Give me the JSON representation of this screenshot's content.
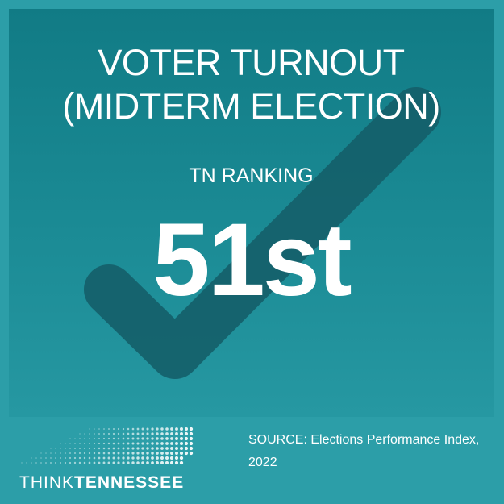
{
  "graphic": {
    "title_line1": "VOTER TURNOUT",
    "title_line2": "(MIDTERM ELECTION)",
    "subtitle": "TN RANKING",
    "ranking": "51st",
    "source_line1": "SOURCE: Elections Performance Index,",
    "source_line2": "2022",
    "background_icon": "checkmark-icon"
  },
  "brand": {
    "logo_icon": "tennessee-map-dots-icon",
    "name_part1": "THINK",
    "name_part2": "TENNESSEE"
  },
  "colors": {
    "outer_background": "#2c9ea8",
    "panel_top": "#117b85",
    "panel_bottom": "#2698a2",
    "checkmark": "#15606a",
    "text": "#ffffff"
  }
}
